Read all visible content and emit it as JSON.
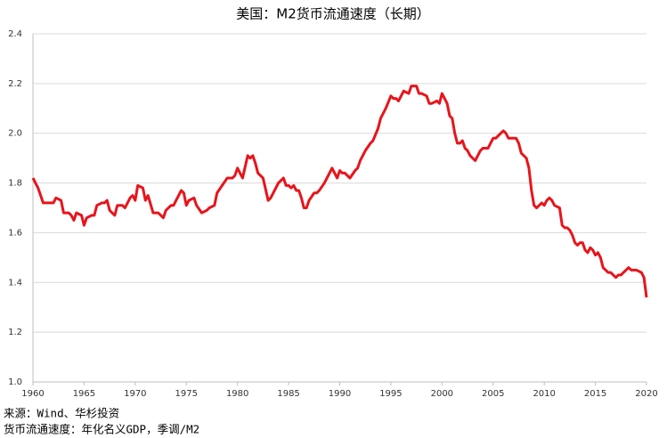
{
  "chart_data": {
    "type": "line",
    "title": "美国：M2货币流通速度（长期）",
    "source": "来源：Wind、华杉投资",
    "note": "货币流通速度：年化名义GDP，季调/M2",
    "grid": true,
    "xlim": [
      1960,
      2020
    ],
    "xticks": [
      1960,
      1965,
      1970,
      1975,
      1980,
      1985,
      1990,
      1995,
      2000,
      2005,
      2010,
      2015,
      2020
    ],
    "ylim": [
      1.0,
      2.4
    ],
    "yticks": [
      {
        "value": 1.0,
        "label": "1.0"
      },
      1.2,
      1.4,
      1.6,
      1.8,
      {
        "value": 2.0,
        "label": "2.0"
      },
      2.2,
      2.4
    ],
    "x": [
      1960,
      1960.5,
      1961,
      1961.5,
      1962,
      1962.25,
      1962.75,
      1963,
      1963.5,
      1963.75,
      1964,
      1964.25,
      1964.75,
      1965,
      1965.25,
      1965.75,
      1966,
      1966.25,
      1966.75,
      1967,
      1967.25,
      1967.5,
      1968,
      1968.25,
      1968.75,
      1969,
      1969.5,
      1969.75,
      1970,
      1970.25,
      1970.75,
      1971,
      1971.25,
      1971.75,
      1972,
      1972.25,
      1972.75,
      1973,
      1973.5,
      1973.75,
      1974,
      1974.5,
      1974.75,
      1975,
      1975.25,
      1975.75,
      1976,
      1976.5,
      1977,
      1977.25,
      1977.75,
      1978,
      1978.5,
      1979,
      1979.5,
      1979.75,
      1980,
      1980.25,
      1980.5,
      1981,
      1981.25,
      1981.5,
      1981.75,
      1982,
      1982.5,
      1983,
      1983.25,
      1983.75,
      1984,
      1984.5,
      1984.75,
      1985,
      1985.25,
      1985.5,
      1985.75,
      1986,
      1986.25,
      1986.5,
      1986.75,
      1987,
      1987.5,
      1987.75,
      1988,
      1988.5,
      1989,
      1989.25,
      1989.75,
      1990,
      1990.25,
      1990.5,
      1991,
      1991.5,
      1991.75,
      1992,
      1992.5,
      1993,
      1993.25,
      1993.75,
      1994,
      1994.5,
      1995,
      1995.25,
      1995.5,
      1995.75,
      1996,
      1996.25,
      1996.75,
      1997,
      1997.5,
      1997.75,
      1998,
      1998.5,
      1998.75,
      1999,
      1999.5,
      1999.75,
      2000,
      2000.25,
      2000.5,
      2000.75,
      2001,
      2001.25,
      2001.5,
      2001.75,
      2002,
      2002.25,
      2002.5,
      2002.75,
      2003,
      2003.25,
      2003.5,
      2003.75,
      2004,
      2004.5,
      2004.75,
      2005,
      2005.25,
      2005.5,
      2005.75,
      2006,
      2006.25,
      2006.5,
      2007,
      2007.25,
      2007.5,
      2007.75,
      2008,
      2008.25,
      2008.5,
      2008.75,
      2009,
      2009.25,
      2009.5,
      2009.75,
      2010,
      2010.25,
      2010.5,
      2010.75,
      2011,
      2011.5,
      2011.75,
      2012,
      2012.25,
      2012.5,
      2012.75,
      2013,
      2013.25,
      2013.5,
      2013.75,
      2014,
      2014.25,
      2014.5,
      2014.75,
      2015,
      2015.25,
      2015.5,
      2015.75,
      2016,
      2016.25,
      2016.5,
      2016.75,
      2017,
      2017.25,
      2017.5,
      2017.75,
      2018,
      2018.25,
      2018.5,
      2018.75,
      2019,
      2019.5,
      2019.75,
      2020
    ],
    "series": [
      {
        "color": "#e8141b",
        "values": [
          1.82,
          1.78,
          1.72,
          1.72,
          1.72,
          1.74,
          1.73,
          1.68,
          1.68,
          1.67,
          1.65,
          1.68,
          1.67,
          1.63,
          1.66,
          1.67,
          1.67,
          1.71,
          1.72,
          1.72,
          1.73,
          1.69,
          1.67,
          1.71,
          1.71,
          1.7,
          1.74,
          1.75,
          1.73,
          1.79,
          1.78,
          1.73,
          1.75,
          1.68,
          1.68,
          1.68,
          1.66,
          1.69,
          1.71,
          1.71,
          1.73,
          1.77,
          1.76,
          1.71,
          1.73,
          1.74,
          1.71,
          1.68,
          1.69,
          1.7,
          1.71,
          1.76,
          1.79,
          1.82,
          1.82,
          1.83,
          1.86,
          1.84,
          1.82,
          1.91,
          1.9,
          1.91,
          1.88,
          1.84,
          1.82,
          1.73,
          1.74,
          1.78,
          1.8,
          1.82,
          1.79,
          1.79,
          1.78,
          1.79,
          1.77,
          1.77,
          1.74,
          1.7,
          1.7,
          1.73,
          1.76,
          1.76,
          1.77,
          1.8,
          1.84,
          1.86,
          1.82,
          1.85,
          1.84,
          1.84,
          1.82,
          1.85,
          1.86,
          1.89,
          1.93,
          1.96,
          1.97,
          2.02,
          2.06,
          2.1,
          2.15,
          2.14,
          2.14,
          2.13,
          2.15,
          2.17,
          2.16,
          2.19,
          2.19,
          2.16,
          2.16,
          2.15,
          2.12,
          2.12,
          2.13,
          2.12,
          2.16,
          2.14,
          2.12,
          2.07,
          2.06,
          2.0,
          1.96,
          1.96,
          1.97,
          1.94,
          1.93,
          1.91,
          1.9,
          1.89,
          1.91,
          1.93,
          1.94,
          1.94,
          1.96,
          1.98,
          1.98,
          1.99,
          2.0,
          2.01,
          2.0,
          1.98,
          1.98,
          1.98,
          1.96,
          1.92,
          1.91,
          1.9,
          1.86,
          1.77,
          1.71,
          1.7,
          1.71,
          1.72,
          1.71,
          1.73,
          1.74,
          1.73,
          1.71,
          1.7,
          1.63,
          1.62,
          1.62,
          1.61,
          1.59,
          1.56,
          1.55,
          1.56,
          1.56,
          1.53,
          1.52,
          1.54,
          1.53,
          1.51,
          1.52,
          1.5,
          1.46,
          1.45,
          1.44,
          1.44,
          1.43,
          1.42,
          1.43,
          1.43,
          1.44,
          1.45,
          1.46,
          1.45,
          1.45,
          1.45,
          1.44,
          1.42,
          1.34
        ]
      }
    ]
  }
}
